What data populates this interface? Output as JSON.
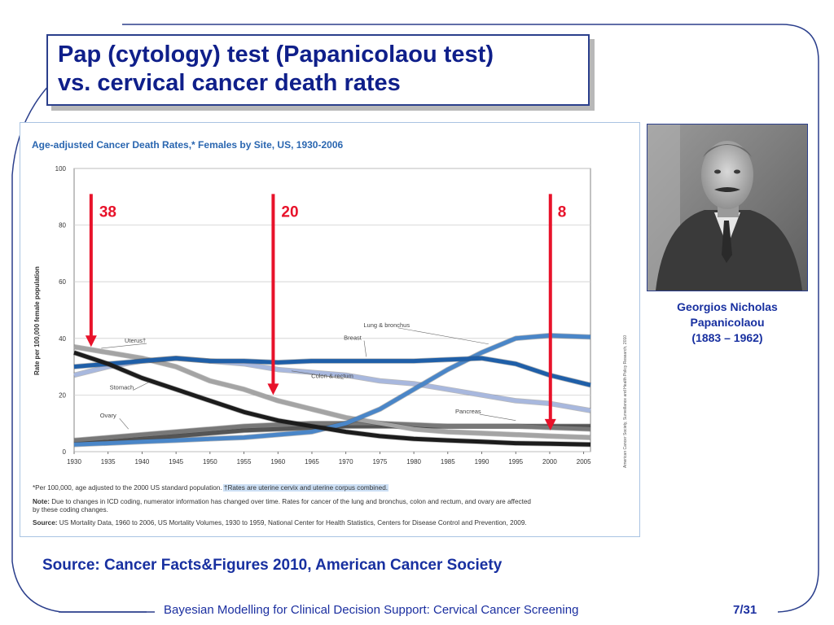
{
  "slide": {
    "title_line1": "Pap (cytology) test (Papanicolaou test)",
    "title_line2": "vs. cervical cancer death rates",
    "source": "Source: Cancer Facts&Figures 2010, American Cancer Society",
    "footer": "Bayesian Modelling for Clinical Decision Support: Cervical Cancer Screening",
    "page": "7/31",
    "accent_color": "#1830a0",
    "arrow_color": "#e8122a"
  },
  "portrait": {
    "name_line1": "Georgios Nicholas",
    "name_line2": "Papanicolaou",
    "dates": "(1883 – 1962)"
  },
  "chart_data": {
    "type": "line",
    "title": "Age-adjusted Cancer Death Rates,* Females by Site, US, 1930-2006",
    "ylabel": "Rate per 100,000 female population",
    "xlabel": "",
    "xlim": [
      1930,
      2006
    ],
    "ylim": [
      0,
      100
    ],
    "x_ticks": [
      1930,
      1935,
      1940,
      1945,
      1950,
      1955,
      1960,
      1965,
      1970,
      1975,
      1980,
      1985,
      1990,
      1995,
      2000,
      2005
    ],
    "y_ticks": [
      0,
      20,
      40,
      60,
      80,
      100
    ],
    "grid": true,
    "series": [
      {
        "name": "Uterus†",
        "color": "#1c1c1c",
        "x": [
          1930,
          1935,
          1940,
          1945,
          1950,
          1955,
          1960,
          1965,
          1970,
          1975,
          1980,
          1985,
          1990,
          1995,
          2000,
          2006
        ],
        "y": [
          35,
          31,
          26,
          22,
          18,
          14,
          11,
          9,
          7,
          5.5,
          4.5,
          4,
          3.5,
          3,
          2.8,
          2.5
        ]
      },
      {
        "name": "Breast",
        "color": "#1f5fa8",
        "x": [
          1930,
          1935,
          1940,
          1945,
          1950,
          1955,
          1960,
          1965,
          1970,
          1975,
          1980,
          1985,
          1990,
          1995,
          2000,
          2006
        ],
        "y": [
          30,
          31,
          32,
          33,
          32,
          32,
          31.5,
          32,
          32,
          32,
          32,
          32.5,
          33,
          31,
          27,
          23.5
        ]
      },
      {
        "name": "Lung & bronchus",
        "color": "#4a86c8",
        "x": [
          1930,
          1935,
          1940,
          1945,
          1950,
          1955,
          1960,
          1965,
          1970,
          1975,
          1980,
          1985,
          1990,
          1995,
          2000,
          2006
        ],
        "y": [
          2.5,
          3,
          3.5,
          4,
          4.5,
          5,
          6,
          7,
          10,
          15,
          22,
          29,
          35,
          40,
          41,
          40.5
        ]
      },
      {
        "name": "Colon & rectum",
        "color": "#a8b8de",
        "x": [
          1930,
          1935,
          1940,
          1945,
          1950,
          1955,
          1960,
          1965,
          1970,
          1975,
          1980,
          1985,
          1990,
          1995,
          2000,
          2006
        ],
        "y": [
          27,
          30,
          32,
          33,
          32,
          31,
          29,
          28,
          27,
          25,
          24,
          22,
          20,
          18,
          17,
          14.5
        ]
      },
      {
        "name": "Stomach",
        "color": "#a4a4a4",
        "x": [
          1930,
          1935,
          1940,
          1945,
          1950,
          1955,
          1960,
          1965,
          1970,
          1975,
          1980,
          1985,
          1990,
          1995,
          2000,
          2006
        ],
        "y": [
          37,
          35,
          33,
          30,
          25,
          22,
          18,
          15,
          12,
          10,
          8,
          7,
          6.5,
          6,
          5.5,
          5
        ]
      },
      {
        "name": "Pancreas",
        "color": "#555555",
        "x": [
          1930,
          1935,
          1940,
          1945,
          1950,
          1955,
          1960,
          1965,
          1970,
          1975,
          1980,
          1985,
          1990,
          1995,
          2000,
          2006
        ],
        "y": [
          3,
          3.5,
          4.5,
          5.5,
          6.5,
          7.5,
          8,
          8.5,
          9,
          9,
          9,
          9,
          9,
          9,
          9,
          9
        ]
      },
      {
        "name": "Ovary",
        "color": "#787878",
        "x": [
          1930,
          1935,
          1940,
          1945,
          1950,
          1955,
          1960,
          1965,
          1970,
          1975,
          1980,
          1985,
          1990,
          1995,
          2000,
          2006
        ],
        "y": [
          4,
          5,
          6,
          7,
          8,
          9,
          9.5,
          10,
          10,
          10,
          9.5,
          9,
          9,
          9,
          8.5,
          8
        ]
      }
    ],
    "annotations": [
      {
        "label": "38",
        "x": 1932.5,
        "y_top": 91,
        "y_tip": 37
      },
      {
        "label": "20",
        "x": 1959.3,
        "y_top": 91,
        "y_tip": 20
      },
      {
        "label": "8",
        "x": 2000.1,
        "y_top": 91,
        "y_tip": 7.5
      }
    ],
    "footnote_star": "*Per 100,000, age adjusted to the 2000 US standard population.",
    "footnote_dagger": "†Rates are uterine cervix and uterine corpus combined.",
    "note_label": "Note:",
    "note_text": "Due to changes in ICD coding, numerator information has changed over time. Rates for cancer of the lung and bronchus, colon and rectum, and ovary are affected by these coding changes.",
    "source_label": "Source:",
    "source_text": "US Mortality Data, 1960 to 2006, US Mortality Volumes, 1930 to 1959, National Center for Health Statistics, Centers for Disease Control and Prevention, 2009.",
    "side_credit": "American Cancer Society, Surveillance and Health Policy Research, 2010"
  }
}
